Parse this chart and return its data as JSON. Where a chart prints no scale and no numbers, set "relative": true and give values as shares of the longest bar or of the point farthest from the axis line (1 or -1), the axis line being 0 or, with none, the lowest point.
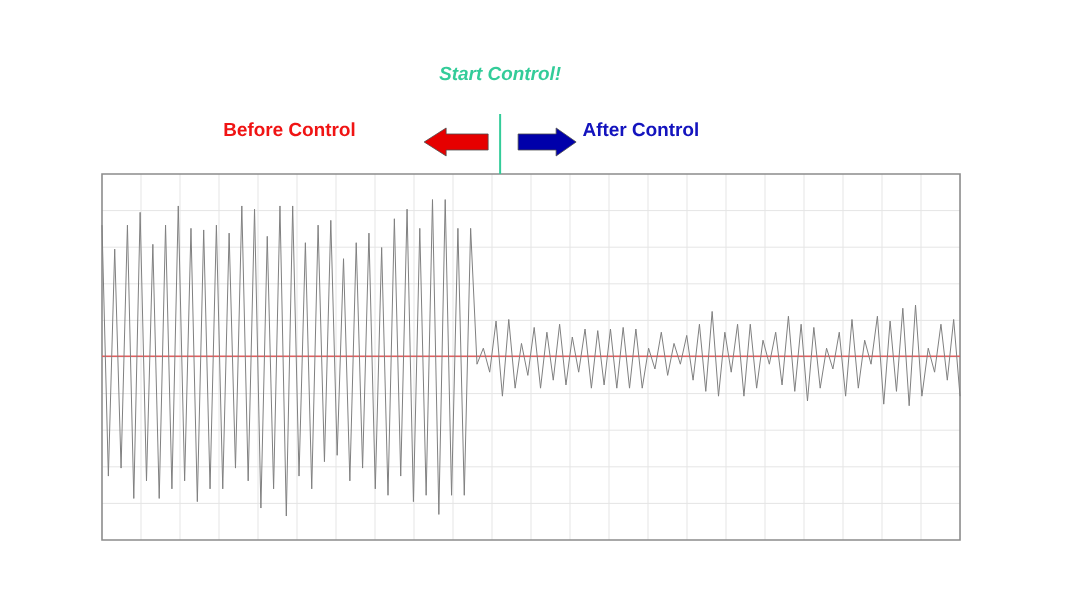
{
  "chart_data": {
    "type": "line",
    "relative": true,
    "grid": true,
    "marker": "none",
    "line_style": "solid",
    "categories": [
      null,
      null,
      null,
      null,
      null,
      null,
      null,
      null,
      null,
      null,
      null,
      null,
      null,
      null,
      null,
      null,
      null,
      null,
      null,
      null,
      null,
      null,
      null,
      null,
      null,
      null,
      null,
      null,
      null,
      null,
      null,
      null,
      null,
      null,
      null,
      null,
      null,
      null,
      null,
      null,
      null,
      null,
      null,
      null,
      null,
      null,
      null,
      null,
      null,
      null,
      null,
      null,
      null,
      null,
      null,
      null,
      null,
      null,
      null,
      null,
      null,
      null,
      null,
      null,
      null,
      null,
      null,
      null,
      null,
      null,
      null,
      null,
      null,
      null,
      null,
      null,
      null,
      null,
      null,
      null,
      null,
      null,
      null,
      null,
      null,
      null,
      null,
      null,
      null,
      null,
      null,
      null,
      null,
      null,
      null,
      null,
      null,
      null,
      null,
      null,
      null,
      null,
      null,
      null,
      null,
      null,
      null,
      null,
      null,
      null,
      null,
      null,
      null,
      null,
      null,
      null,
      null,
      null,
      null,
      null,
      null,
      null,
      null,
      null,
      null,
      null,
      null,
      null,
      null,
      null,
      null,
      null,
      null,
      null,
      null,
      null
    ],
    "series": [
      {
        "color": "#808080",
        "values": [
          0.82,
          -0.75,
          0.67,
          -0.7,
          0.82,
          -0.89,
          0.9,
          -0.78,
          0.7,
          -0.89,
          0.82,
          -0.83,
          0.94,
          -0.78,
          0.8,
          -0.91,
          0.79,
          -0.83,
          0.82,
          -0.83,
          0.77,
          -0.7,
          0.94,
          -0.78,
          0.92,
          -0.95,
          0.75,
          -0.83,
          0.94,
          -1.0,
          0.94,
          -0.75,
          0.71,
          -0.83,
          0.82,
          -0.66,
          0.85,
          -0.62,
          0.61,
          -0.78,
          0.71,
          -0.7,
          0.77,
          -0.83,
          0.68,
          -0.87,
          0.86,
          -0.75,
          0.92,
          -0.91,
          0.8,
          -0.87,
          0.98,
          -0.99,
          0.98,
          -0.87,
          0.8,
          -0.87,
          0.8,
          -0.05,
          0.05,
          -0.1,
          0.22,
          -0.25,
          0.23,
          -0.2,
          0.08,
          -0.12,
          0.18,
          -0.2,
          0.15,
          -0.15,
          0.2,
          -0.18,
          0.12,
          -0.1,
          0.17,
          -0.2,
          0.16,
          -0.18,
          0.17,
          -0.2,
          0.18,
          -0.2,
          0.17,
          -0.2,
          0.05,
          -0.08,
          0.15,
          -0.12,
          0.08,
          -0.05,
          0.13,
          -0.15,
          0.2,
          -0.22,
          0.28,
          -0.25,
          0.15,
          -0.1,
          0.2,
          -0.25,
          0.2,
          -0.2,
          0.1,
          -0.05,
          0.15,
          -0.18,
          0.25,
          -0.22,
          0.2,
          -0.28,
          0.18,
          -0.2,
          0.05,
          -0.08,
          0.15,
          -0.25,
          0.23,
          -0.2,
          0.1,
          -0.05,
          0.25,
          -0.3,
          0.22,
          -0.22,
          0.3,
          -0.31,
          0.32,
          -0.25,
          0.05,
          -0.1,
          0.2,
          -0.15,
          0.23,
          -0.25
        ]
      }
    ],
    "ref_lines": [
      {
        "axis": "y",
        "value": 0,
        "color": "#e06060"
      }
    ],
    "annotations": [
      "Start Control!",
      "Before Control",
      "After Control"
    ]
  }
}
